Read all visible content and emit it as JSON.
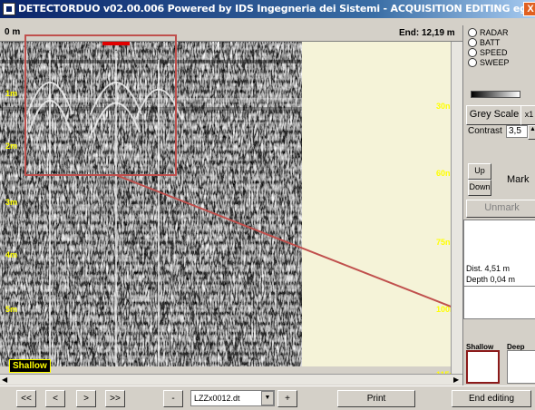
{
  "window": {
    "title": "DETECTORDUO v02.00.006 Powered by IDS Ingegneria dei Sistemi - ACQUISITION EDITING  egclifTT",
    "close_label": "X"
  },
  "ruler": {
    "start": "0 m",
    "end": "End: 12,19 m"
  },
  "depth_axis_left": [
    "1m",
    "2m",
    "3m",
    "4m",
    "5m"
  ],
  "depth_axis_right": [
    "30ns",
    "60ns",
    "75ns",
    "100ns",
    "115ns"
  ],
  "display_preset": "Shallow",
  "channels": [
    {
      "label": "RADAR",
      "selected": false
    },
    {
      "label": "BATT",
      "selected": false
    },
    {
      "label": "SPEED",
      "selected": false
    },
    {
      "label": "SWEEP",
      "selected": false
    }
  ],
  "palette": {
    "label": "Grey Scale",
    "zoom_label": "x1"
  },
  "contrast": {
    "label": "Contrast",
    "value": "3,5"
  },
  "marker": {
    "up": "Up",
    "down": "Down",
    "mark": "Mark",
    "unmark": "Unmark"
  },
  "info": {
    "dist": "Dist. 4,51 m",
    "depth": "Depth 0,04 m"
  },
  "presets": {
    "shallow": "Shallow",
    "deep": "Deep"
  },
  "toolbar": {
    "first": "<<",
    "prev": "<",
    "next": ">",
    "last": ">>",
    "minus": "-",
    "plus": "+",
    "file": "LZZx0012.dt",
    "print": "Print",
    "end_editing": "End editing"
  },
  "colors": {
    "title_bar": "#0a246a",
    "annotation": "#c0504d",
    "depth_label": "#ffff00",
    "marker_tick": "#e00000"
  }
}
